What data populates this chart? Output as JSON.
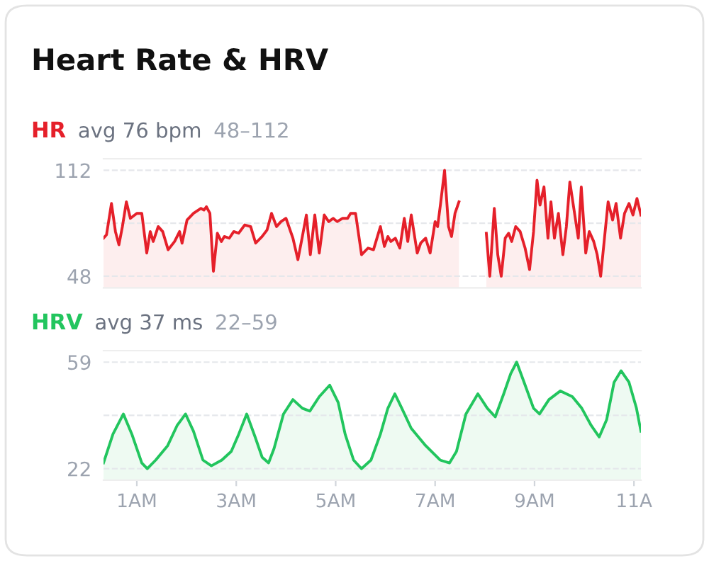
{
  "chart_data": [
    {
      "type": "area",
      "title": "Heart Rate & HRV",
      "annotations": [
        "avg 76 bpm",
        "48–112"
      ],
      "xlim": [
        0.33,
        11.14
      ],
      "tick_labels": "y",
      "ylim": [
        41,
        119
      ],
      "yticks": [
        48,
        {
          "value": 80,
          "label": null
        },
        112
      ],
      "grid": "y",
      "legend": false,
      "series": [
        {
          "name": "HR",
          "color": "#e5202a",
          "x": [
            0.33,
            0.39,
            0.49,
            0.57,
            0.64,
            0.71,
            0.79,
            0.87,
            1.0,
            1.1,
            1.2,
            1.27,
            1.33,
            1.43,
            1.52,
            1.63,
            1.76,
            1.86,
            1.91,
            2.01,
            2.14,
            2.29,
            2.35,
            2.4,
            2.47,
            2.54,
            2.62,
            2.7,
            2.76,
            2.86,
            2.95,
            3.05,
            3.17,
            3.29,
            3.39,
            3.52,
            3.62,
            3.71,
            3.81,
            3.9,
            4.0,
            4.14,
            4.24,
            4.33,
            4.41,
            4.49,
            4.58,
            4.67,
            4.77,
            4.86,
            4.95,
            5.03,
            5.14,
            5.24,
            5.3,
            5.4,
            5.52,
            5.65,
            5.76,
            5.9,
            5.98,
            6.05,
            6.11,
            6.2,
            6.29,
            6.38,
            6.45,
            6.52,
            6.64,
            6.71,
            6.81,
            6.9,
            7.0,
            7.05,
            7.11,
            7.19,
            7.27,
            7.33,
            7.4,
            7.48,
            7.7,
            8.03,
            8.1,
            8.19,
            8.26,
            8.33,
            8.41,
            8.48,
            8.54,
            8.62,
            8.71,
            8.81,
            8.9,
            8.98,
            9.05,
            9.11,
            9.19,
            9.27,
            9.33,
            9.4,
            9.48,
            9.57,
            9.64,
            9.71,
            9.79,
            9.88,
            9.94,
            10.03,
            10.1,
            10.19,
            10.26,
            10.33,
            10.41,
            10.48,
            10.57,
            10.64,
            10.73,
            10.81,
            10.9,
            10.98,
            11.06,
            11.14
          ],
          "values": [
            71,
            73,
            92,
            75,
            67,
            78,
            93,
            83,
            86,
            86,
            62,
            75,
            69,
            78,
            75,
            64,
            69,
            75,
            68,
            82,
            86,
            89,
            88,
            90,
            86,
            51,
            74,
            69,
            72,
            71,
            75,
            74,
            79,
            78,
            68,
            72,
            76,
            86,
            78,
            81,
            83,
            71,
            58,
            72,
            85,
            61,
            85,
            62,
            85,
            81,
            83,
            81,
            83,
            83,
            86,
            86,
            61,
            65,
            64,
            78,
            66,
            72,
            69,
            71,
            65,
            83,
            69,
            85,
            62,
            68,
            71,
            62,
            81,
            78,
            92,
            112,
            78,
            72,
            86,
            93,
            null,
            74,
            48,
            89,
            61,
            48,
            71,
            74,
            69,
            78,
            75,
            65,
            52,
            75,
            106,
            91,
            102,
            71,
            93,
            71,
            86,
            61,
            78,
            105,
            89,
            71,
            102,
            62,
            75,
            69,
            61,
            48,
            72,
            93,
            82,
            92,
            71,
            86,
            92,
            85,
            95,
            85
          ]
        }
      ]
    },
    {
      "type": "area",
      "annotations": [
        "avg 37 ms",
        "22–59"
      ],
      "xlim": [
        0.33,
        11.14
      ],
      "xticks": [
        {
          "value": 1,
          "label": "1AM"
        },
        {
          "value": 3,
          "label": "3AM"
        },
        {
          "value": 5,
          "label": "5AM"
        },
        {
          "value": 7,
          "label": "7AM"
        },
        {
          "value": 9,
          "label": "9AM"
        },
        {
          "value": 11,
          "label": "11A"
        }
      ],
      "ylim": [
        18,
        63
      ],
      "yticks": [
        22,
        {
          "value": 40.5,
          "label": null
        },
        59
      ],
      "grid": "y",
      "legend": false,
      "series": [
        {
          "name": "HRV",
          "color": "#22c55e",
          "x": [
            0.33,
            0.52,
            0.73,
            0.9,
            1.1,
            1.21,
            1.38,
            1.62,
            1.81,
            1.98,
            2.14,
            2.33,
            2.5,
            2.71,
            2.9,
            3.05,
            3.21,
            3.38,
            3.52,
            3.65,
            3.76,
            3.95,
            4.14,
            4.33,
            4.48,
            4.67,
            4.88,
            5.05,
            5.19,
            5.36,
            5.52,
            5.71,
            5.9,
            6.05,
            6.19,
            6.33,
            6.52,
            6.81,
            7.1,
            7.29,
            7.43,
            7.62,
            7.86,
            8.05,
            8.21,
            8.38,
            8.52,
            8.64,
            8.79,
            8.98,
            9.1,
            9.29,
            9.52,
            9.76,
            9.95,
            10.14,
            10.3,
            10.45,
            10.6,
            10.74,
            10.9,
            11.05,
            11.14
          ],
          "values": [
            24,
            34,
            41,
            34,
            24,
            22,
            25,
            30,
            37,
            41,
            35,
            25,
            23,
            25,
            28,
            34,
            41,
            33,
            26,
            24,
            29,
            41,
            46,
            43,
            42,
            47,
            51,
            45,
            34,
            25,
            22,
            25,
            34,
            43,
            48,
            43,
            36,
            30,
            25,
            24,
            28,
            41,
            48,
            43,
            40,
            48,
            55,
            59,
            52,
            43,
            41,
            46,
            49,
            47,
            43,
            37,
            33,
            39,
            52,
            56,
            52,
            43,
            35
          ]
        }
      ]
    }
  ]
}
